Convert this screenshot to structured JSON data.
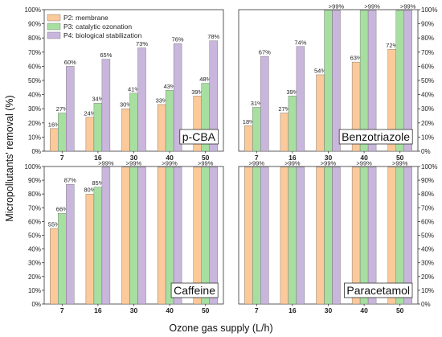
{
  "figure": {
    "xlabel": "Ozone gas supply (L/h)",
    "ylabel": "Micropollutants' removal (%)"
  },
  "colors": {
    "P2": "#fbc99a",
    "P3": "#a7dfa1",
    "P4": "#c9b6dc",
    "bar_edge": "#6b6b6b"
  },
  "chart_data": [
    {
      "type": "bar",
      "title": "p-CBA",
      "categories": [
        "7",
        "16",
        "30",
        "40",
        "50"
      ],
      "series": [
        {
          "name": "P2: membrane",
          "values": [
            16,
            24,
            30,
            33,
            39
          ],
          "labels": [
            "16%",
            "24%",
            "30%",
            "33%",
            "39%"
          ]
        },
        {
          "name": "P3: catalytic ozonation",
          "values": [
            27,
            34,
            41,
            43,
            48
          ],
          "labels": [
            "27%",
            "34%",
            "41%",
            "43%",
            "48%"
          ]
        },
        {
          "name": "P4: biological stabilization",
          "values": [
            60,
            65,
            73,
            76,
            78
          ],
          "labels": [
            "60%",
            "65%",
            "73%",
            "76%",
            "78%"
          ]
        }
      ],
      "ylim": [
        0,
        100
      ],
      "yticks": [
        "0%",
        "10%",
        "20%",
        "30%",
        "40%",
        "50%",
        "60%",
        "70%",
        "80%",
        "90%",
        "100%"
      ],
      "ytick_side": "left",
      "legend": "top-left"
    },
    {
      "type": "bar",
      "title": "Benzotriazole",
      "categories": [
        "7",
        "16",
        "30",
        "40",
        "50"
      ],
      "series": [
        {
          "name": "P2: membrane",
          "values": [
            18,
            27,
            54,
            63,
            72
          ],
          "labels": [
            "18%",
            "27%",
            "54%",
            "63%",
            "72%"
          ]
        },
        {
          "name": "P3: catalytic ozonation",
          "values": [
            31,
            39,
            99.5,
            99.5,
            99.5
          ],
          "labels": [
            "31%",
            "39%",
            "",
            "",
            ""
          ]
        },
        {
          "name": "P4: biological stabilization",
          "values": [
            67,
            74,
            99.5,
            99.5,
            99.5
          ],
          "labels": [
            "67%",
            "74%",
            ">99%",
            ">99%",
            ">99%"
          ]
        }
      ],
      "ylim": [
        0,
        100
      ],
      "yticks": [
        "0%",
        "10%",
        "20%",
        "30%",
        "40%",
        "50%",
        "60%",
        "70%",
        "80%",
        "90%",
        "100%"
      ],
      "ytick_side": "right"
    },
    {
      "type": "bar",
      "title": "Caffeine",
      "categories": [
        "7",
        "16",
        "30",
        "40",
        "50"
      ],
      "series": [
        {
          "name": "P2: membrane",
          "values": [
            55,
            80,
            99.5,
            99.5,
            99.5
          ],
          "labels": [
            "55%",
            "80%",
            "",
            "",
            ""
          ]
        },
        {
          "name": "P3: catalytic ozonation",
          "values": [
            66,
            85,
            99.5,
            99.5,
            99.5
          ],
          "labels": [
            "66%",
            "85%",
            ">99%",
            ">99%",
            ">99%"
          ]
        },
        {
          "name": "P4: biological stabilization",
          "values": [
            87,
            99.5,
            99.5,
            99.5,
            99.5
          ],
          "labels": [
            "87%",
            ">99%",
            "",
            "",
            ""
          ]
        }
      ],
      "ylim": [
        0,
        100
      ],
      "yticks": [
        "0%",
        "10%",
        "20%",
        "30%",
        "40%",
        "50%",
        "60%",
        "70%",
        "80%",
        "90%",
        "100%"
      ],
      "ytick_side": "left"
    },
    {
      "type": "bar",
      "title": "Paracetamol",
      "categories": [
        "7",
        "16",
        "30",
        "40",
        "50"
      ],
      "series": [
        {
          "name": "P2: membrane",
          "values": [
            99.5,
            99.5,
            99.5,
            99.5,
            99.5
          ],
          "labels": [
            "",
            "",
            "",
            "",
            ""
          ]
        },
        {
          "name": "P3: catalytic ozonation",
          "values": [
            99.5,
            99.5,
            99.5,
            99.5,
            99.5
          ],
          "labels": [
            ">99%",
            ">99%",
            ">99%",
            ">99%",
            ">99%"
          ]
        },
        {
          "name": "P4: biological stabilization",
          "values": [
            99.5,
            99.5,
            99.5,
            99.5,
            99.5
          ],
          "labels": [
            "",
            "",
            "",
            "",
            ""
          ]
        }
      ],
      "ylim": [
        0,
        100
      ],
      "yticks": [
        "0%",
        "10%",
        "20%",
        "30%",
        "40%",
        "50%",
        "60%",
        "70%",
        "80%",
        "90%",
        "100%"
      ],
      "ytick_side": "right"
    }
  ]
}
